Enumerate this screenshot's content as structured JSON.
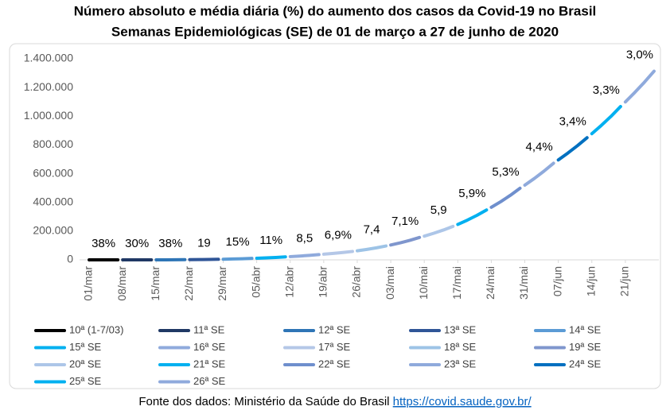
{
  "chart_data": {
    "type": "line",
    "title": "Número absoluto e média diária (%) do aumento dos casos da Covid-19 no Brasil",
    "subtitle": "Semanas Epidemiológicas (SE) de 01 de março a 27 de junho de 2020",
    "xlim": [
      -2,
      119
    ],
    "xticks": [
      {
        "value": 0,
        "label": "01/mar"
      },
      {
        "value": 7,
        "label": "08/mar"
      },
      {
        "value": 14,
        "label": "15/mar"
      },
      {
        "value": 21,
        "label": "22/mar"
      },
      {
        "value": 28,
        "label": "29/mar"
      },
      {
        "value": 35,
        "label": "05/abr"
      },
      {
        "value": 42,
        "label": "12/abr"
      },
      {
        "value": 49,
        "label": "19/abr"
      },
      {
        "value": 56,
        "label": "26/abr"
      },
      {
        "value": 63,
        "label": "03/mai"
      },
      {
        "value": 70,
        "label": "10/mai"
      },
      {
        "value": 77,
        "label": "17/mai"
      },
      {
        "value": 84,
        "label": "24/mai"
      },
      {
        "value": 91,
        "label": "31/mai"
      },
      {
        "value": 98,
        "label": "07/jun"
      },
      {
        "value": 105,
        "label": "14/jun"
      },
      {
        "value": 112,
        "label": "21/jun"
      }
    ],
    "ylim": [
      0,
      1400000
    ],
    "yticks": [
      0,
      {
        "value": 200000,
        "label": "200.000"
      },
      {
        "value": 400000,
        "label": "400.000"
      },
      {
        "value": 600000,
        "label": "600.000"
      },
      {
        "value": 800000,
        "label": "800.000"
      },
      {
        "value": 1000000,
        "label": "1.000.000"
      },
      {
        "value": 1200000,
        "label": "1.200.000"
      },
      {
        "value": 1400000,
        "label": "1.400.000"
      }
    ],
    "grid": false,
    "series": [
      {
        "name": "10ª (1-7/03)",
        "color": "#000000",
        "x": [
          0,
          2,
          4,
          6
        ],
        "values": [
          2,
          4,
          8,
          19
        ]
      },
      {
        "name": "11ª SE",
        "color": "#1f3864",
        "x": [
          7,
          9,
          11,
          13
        ],
        "values": [
          25,
          42,
          72,
          121
        ]
      },
      {
        "name": "12ª SE",
        "color": "#2e75b6",
        "x": [
          14,
          16,
          18,
          20
        ],
        "values": [
          167,
          316,
          598,
          1128
        ]
      },
      {
        "name": "13ª SE",
        "color": "#2f5597",
        "x": [
          21,
          23,
          25,
          27
        ],
        "values": [
          1347,
          1920,
          2738,
          3904
        ]
      },
      {
        "name": "14ª SE",
        "color": "#5b9bd5",
        "x": [
          28,
          30,
          32,
          34
        ],
        "values": [
          4482,
          5907,
          7785,
          10278
        ]
      },
      {
        "name": "15ª SE",
        "color": "#00b0f0",
        "x": [
          35,
          37,
          39,
          41
        ],
        "values": [
          11357,
          13868,
          16934,
          20727
        ]
      },
      {
        "name": "16ª SE",
        "color": "#8faadc",
        "x": [
          42,
          44,
          46,
          48
        ],
        "values": [
          22480,
          26447,
          31113,
          36599
        ]
      },
      {
        "name": "17ª SE",
        "color": "#b4c7e7",
        "x": [
          49,
          51,
          53,
          55
        ],
        "values": [
          39135,
          44747,
          51163,
          58509
        ]
      },
      {
        "name": "18ª SE",
        "color": "#9dc3e6",
        "x": [
          56,
          58,
          60,
          62
        ],
        "values": [
          62850,
          72520,
          83680,
          96559
        ]
      },
      {
        "name": "19ª SE",
        "color": "#7f96cd",
        "x": [
          63,
          65,
          67,
          69
        ],
        "values": [
          103405,
          118590,
          136000,
          155939
        ]
      },
      {
        "name": "20ª SE",
        "color": "#adc6e8",
        "x": [
          70,
          72,
          74,
          76
        ],
        "values": [
          165155,
          185250,
          207800,
          233142
        ]
      },
      {
        "name": "21ª SE",
        "color": "#00b0f0",
        "x": [
          77,
          79,
          81,
          83
        ],
        "values": [
          246800,
          276600,
          310000,
          347398
        ]
      },
      {
        "name": "22ª SE",
        "color": "#6f8fcd",
        "x": [
          84,
          86,
          88,
          90
        ],
        "values": [
          365800,
          405600,
          449800,
          498440
        ]
      },
      {
        "name": "23ª SE",
        "color": "#8faadc",
        "x": [
          91,
          93,
          95,
          97
        ],
        "values": [
          520300,
          566900,
          617700,
          672846
        ]
      },
      {
        "name": "24ª SE",
        "color": "#0070c0",
        "x": [
          98,
          100,
          102,
          104
        ],
        "values": [
          695700,
          743800,
          795200,
          850514
        ]
      },
      {
        "name": "25ª SE",
        "color": "#00b0f0",
        "x": [
          105,
          107,
          109,
          111
        ],
        "values": [
          878600,
          936800,
          999000,
          1067579
        ]
      },
      {
        "name": "26ª SE",
        "color": "#8faadc",
        "x": [
          112,
          114,
          116,
          118
        ],
        "values": [
          1099600,
          1166600,
          1237600,
          1313667
        ]
      }
    ],
    "annotations": [
      "38%",
      "30%",
      "38%",
      "19",
      "15%",
      "11%",
      "8,5",
      "6,9%",
      "7,4",
      "7,1%",
      "5,9",
      "5,9%",
      "5,3%",
      "4,4%",
      "3,4%",
      "3,3%",
      "3,0%"
    ],
    "source": "Fonte dos dados: Ministério da Saúde do Brasil",
    "source_link": "https://covid.saude.gov.br/"
  }
}
